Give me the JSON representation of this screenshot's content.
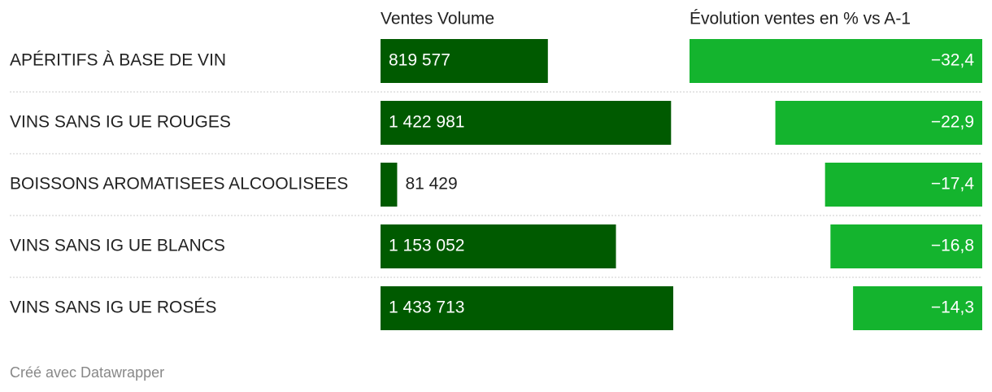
{
  "chart_data": {
    "type": "bar",
    "categories": [
      "APÉRITIFS À BASE DE VIN",
      "VINS SANS IG UE ROUGES",
      "BOISSONS AROMATISEES ALCOOLISEES",
      "VINS SANS IG UE BLANCS",
      "VINS SANS IG UE ROSÉS"
    ],
    "series": [
      {
        "name": "Ventes Volume",
        "color": "#005a00",
        "values": [
          819577,
          1422981,
          81429,
          1153052,
          1433713
        ],
        "value_labels": [
          "819 577",
          "1 422 981",
          "81 429",
          "1 153 052",
          "1 433 713"
        ]
      },
      {
        "name": "Évolution ventes en % vs A-1",
        "color": "#14b42e",
        "values": [
          -32.4,
          -22.9,
          -17.4,
          -16.8,
          -14.3
        ],
        "value_labels": [
          "−32,4",
          "−22,9",
          "−17,4",
          "−16,8",
          "−14,3"
        ]
      }
    ],
    "footer": "Créé avec Datawrapper"
  }
}
